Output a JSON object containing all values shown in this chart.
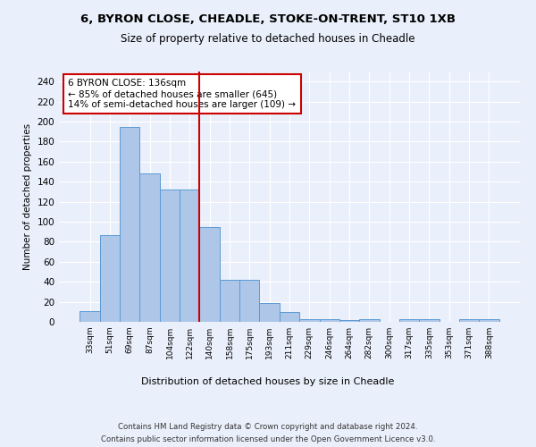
{
  "title_line1": "6, BYRON CLOSE, CHEADLE, STOKE-ON-TRENT, ST10 1XB",
  "title_line2": "Size of property relative to detached houses in Cheadle",
  "xlabel": "Distribution of detached houses by size in Cheadle",
  "ylabel": "Number of detached properties",
  "categories": [
    "33sqm",
    "51sqm",
    "69sqm",
    "87sqm",
    "104sqm",
    "122sqm",
    "140sqm",
    "158sqm",
    "175sqm",
    "193sqm",
    "211sqm",
    "229sqm",
    "246sqm",
    "264sqm",
    "282sqm",
    "300sqm",
    "317sqm",
    "335sqm",
    "353sqm",
    "371sqm",
    "388sqm"
  ],
  "values": [
    11,
    87,
    195,
    148,
    132,
    132,
    95,
    42,
    42,
    19,
    10,
    3,
    3,
    2,
    3,
    0,
    3,
    3,
    0,
    3,
    3
  ],
  "bar_color": "#aec6e8",
  "bar_edge_color": "#5b9bd5",
  "vline_x": 6,
  "annotation_text": "6 BYRON CLOSE: 136sqm\n← 85% of detached houses are smaller (645)\n14% of semi-detached houses are larger (109) →",
  "annotation_box_color": "#ffffff",
  "annotation_box_edge": "#cc0000",
  "vline_color": "#cc0000",
  "ylim": [
    0,
    250
  ],
  "yticks": [
    0,
    20,
    40,
    60,
    80,
    100,
    120,
    140,
    160,
    180,
    200,
    220,
    240
  ],
  "footer_line1": "Contains HM Land Registry data © Crown copyright and database right 2024.",
  "footer_line2": "Contains public sector information licensed under the Open Government Licence v3.0.",
  "bg_color": "#eaf0fb",
  "plot_bg_color": "#eaf0fb"
}
